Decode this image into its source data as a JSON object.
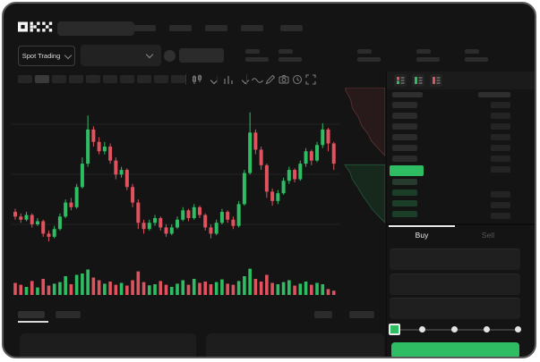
{
  "header": {
    "logo": "OKX",
    "nav_placeholder_count": 5
  },
  "subheader": {
    "market_selector_label": "Spot Trading",
    "stat_group_count": 5
  },
  "toolbar": {
    "timeframe_chip_count": 10,
    "active_chip_index": 1,
    "icons": [
      "candle-type-icon",
      "chevron",
      "indicators-icon",
      "chevron",
      "wave-line-icon",
      "draw-pencil-icon",
      "camera-icon",
      "history-clock-icon",
      "fullscreen-icon"
    ]
  },
  "orderbook": {
    "view_icons": [
      "book-combined-icon",
      "book-bids-icon",
      "book-asks-icon"
    ],
    "ask_row_count": 6,
    "amount_row_count": 7,
    "bid_row_count": 4,
    "bid_amount_count": 3,
    "last_price_highlight_color": "#2fbd63"
  },
  "trade_panel": {
    "tabs": [
      {
        "label": "Buy",
        "active": true
      },
      {
        "label": "Sell",
        "active": false
      }
    ],
    "input_count": 3,
    "slider": {
      "steps": 5,
      "selected_index": 0
    },
    "submit_color": "#2fbd63"
  },
  "colors": {
    "up": "#2fbd63",
    "down": "#e0525e",
    "bid_row_tint": "rgba(47,189,99,0.25)",
    "placeholder": "#2b2b2b",
    "grid": "#222222"
  },
  "chart_data": {
    "type": "candlestick",
    "note": "values normalized 0-100 (no axis labels visible in screenshot)",
    "candles": [
      [
        31,
        28,
        33,
        26
      ],
      [
        28,
        26,
        30,
        24
      ],
      [
        26,
        29,
        31,
        25
      ],
      [
        29,
        23,
        30,
        21
      ],
      [
        23,
        25,
        27,
        22
      ],
      [
        25,
        17,
        26,
        15
      ],
      [
        17,
        15,
        19,
        12
      ],
      [
        15,
        20,
        22,
        14
      ],
      [
        20,
        28,
        30,
        19
      ],
      [
        28,
        37,
        39,
        27
      ],
      [
        37,
        34,
        40,
        32
      ],
      [
        34,
        47,
        49,
        33
      ],
      [
        47,
        62,
        66,
        46
      ],
      [
        62,
        84,
        93,
        60
      ],
      [
        84,
        76,
        86,
        73
      ],
      [
        76,
        70,
        79,
        68
      ],
      [
        70,
        73,
        76,
        68
      ],
      [
        73,
        64,
        75,
        62
      ],
      [
        64,
        55,
        66,
        52
      ],
      [
        55,
        58,
        60,
        53
      ],
      [
        58,
        47,
        59,
        45
      ],
      [
        47,
        37,
        49,
        34
      ],
      [
        37,
        24,
        39,
        20
      ],
      [
        24,
        20,
        26,
        17
      ],
      [
        20,
        24,
        26,
        19
      ],
      [
        24,
        27,
        29,
        22
      ],
      [
        27,
        21,
        28,
        19
      ],
      [
        21,
        17,
        23,
        15
      ],
      [
        17,
        21,
        23,
        16
      ],
      [
        21,
        26,
        28,
        20
      ],
      [
        26,
        32,
        34,
        25
      ],
      [
        32,
        27,
        33,
        25
      ],
      [
        27,
        34,
        36,
        26
      ],
      [
        34,
        29,
        35,
        27
      ],
      [
        29,
        21,
        30,
        19
      ],
      [
        21,
        17,
        23,
        14
      ],
      [
        17,
        24,
        26,
        16
      ],
      [
        24,
        31,
        33,
        23
      ],
      [
        31,
        26,
        32,
        24
      ],
      [
        26,
        22,
        28,
        20
      ],
      [
        22,
        36,
        38,
        21
      ],
      [
        36,
        56,
        58,
        35
      ],
      [
        56,
        82,
        95,
        55
      ],
      [
        82,
        71,
        84,
        68
      ],
      [
        71,
        61,
        73,
        58
      ],
      [
        61,
        44,
        62,
        40
      ],
      [
        44,
        38,
        46,
        35
      ],
      [
        38,
        43,
        45,
        36
      ],
      [
        43,
        51,
        53,
        42
      ],
      [
        51,
        58,
        60,
        49
      ],
      [
        58,
        52,
        59,
        50
      ],
      [
        52,
        62,
        64,
        51
      ],
      [
        62,
        70,
        72,
        60
      ],
      [
        70,
        64,
        71,
        61
      ],
      [
        64,
        74,
        76,
        63
      ],
      [
        74,
        84,
        88,
        72
      ],
      [
        84,
        75,
        85,
        70
      ],
      [
        75,
        62,
        76,
        58
      ]
    ],
    "volume": [
      45,
      38,
      30,
      52,
      28,
      60,
      35,
      42,
      48,
      70,
      40,
      75,
      80,
      95,
      65,
      55,
      42,
      50,
      38,
      45,
      35,
      55,
      88,
      48,
      36,
      40,
      52,
      38,
      30,
      42,
      55,
      38,
      60,
      45,
      50,
      40,
      48,
      58,
      42,
      38,
      52,
      70,
      98,
      60,
      50,
      75,
      45,
      40,
      48,
      55,
      35,
      42,
      50,
      38,
      45,
      40,
      22,
      16
    ],
    "depth": {
      "ask_edge": [
        [
          8,
          2
        ],
        [
          20,
          8
        ],
        [
          24,
          14
        ],
        [
          38,
          20
        ],
        [
          46,
          26
        ],
        [
          60,
          31
        ],
        [
          68,
          36
        ],
        [
          84,
          41
        ],
        [
          100,
          46
        ]
      ],
      "bid_edge": [
        [
          6,
          52
        ],
        [
          18,
          57
        ],
        [
          24,
          62
        ],
        [
          36,
          67
        ],
        [
          46,
          72
        ],
        [
          58,
          77
        ],
        [
          70,
          82
        ],
        [
          86,
          87
        ],
        [
          100,
          91
        ]
      ]
    },
    "grid": true,
    "legend": "none"
  }
}
